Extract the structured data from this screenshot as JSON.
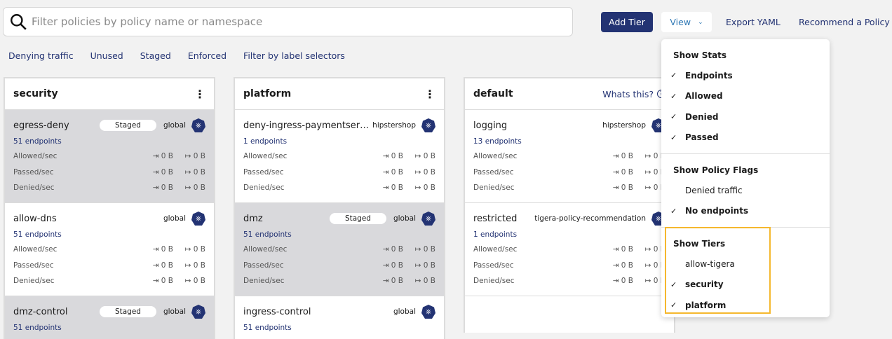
{
  "search": {
    "placeholder": "Filter policies by policy name or namespace",
    "value": ""
  },
  "toolbar": {
    "add_tier": "Add Tier",
    "view": "View",
    "export": "Export YAML",
    "recommend": "Recommend a Policy"
  },
  "filters": [
    "Denying traffic",
    "Unused",
    "Staged",
    "Enforced",
    "Filter by label selectors"
  ],
  "tiers": [
    {
      "name": "security",
      "menu": true,
      "policies": [
        {
          "name": "egress-deny",
          "staged": true,
          "scope": "global",
          "endpoints": "51 endpoints"
        },
        {
          "name": "allow-dns",
          "staged": false,
          "scope": "global",
          "endpoints": "51 endpoints"
        },
        {
          "name": "dmz-control",
          "staged": true,
          "scope": "global",
          "endpoints": "51 endpoints"
        }
      ]
    },
    {
      "name": "platform",
      "menu": true,
      "policies": [
        {
          "name": "deny-ingress-paymentservice",
          "staged": false,
          "scope": "hipstershop",
          "endpoints": "1 endpoints"
        },
        {
          "name": "dmz",
          "staged": true,
          "scope": "global",
          "endpoints": "51 endpoints"
        },
        {
          "name": "ingress-control",
          "staged": false,
          "scope": "global",
          "endpoints": "51 endpoints"
        }
      ]
    },
    {
      "name": "default",
      "help": "Whats this?",
      "policies": [
        {
          "name": "logging",
          "staged": false,
          "scope": "hipstershop",
          "endpoints": "13 endpoints"
        },
        {
          "name": "restricted",
          "staged": false,
          "scope": "tigera-policy-recommendation",
          "endpoints": "1 endpoints"
        }
      ]
    }
  ],
  "staged_label": "Staged",
  "stats": {
    "labels": [
      "Allowed/sec",
      "Passed/sec",
      "Denied/sec"
    ],
    "in": "0 B",
    "out": "0 B"
  },
  "view_menu": [
    {
      "header": "Show Stats",
      "items": [
        {
          "label": "Endpoints",
          "checked": true
        },
        {
          "label": "Allowed",
          "checked": true
        },
        {
          "label": "Denied",
          "checked": true
        },
        {
          "label": "Passed",
          "checked": true
        }
      ]
    },
    {
      "header": "Show Policy Flags",
      "items": [
        {
          "label": "Denied traffic",
          "checked": false
        },
        {
          "label": "No endpoints",
          "checked": true
        }
      ]
    },
    {
      "header": "Show Tiers",
      "items": [
        {
          "label": "allow-tigera",
          "checked": false
        },
        {
          "label": "security",
          "checked": true
        },
        {
          "label": "platform",
          "checked": true
        }
      ]
    }
  ],
  "colors": {
    "primary": "#233373",
    "highlight": "#f5b82e",
    "staged_bg": "#d9d9dc"
  }
}
